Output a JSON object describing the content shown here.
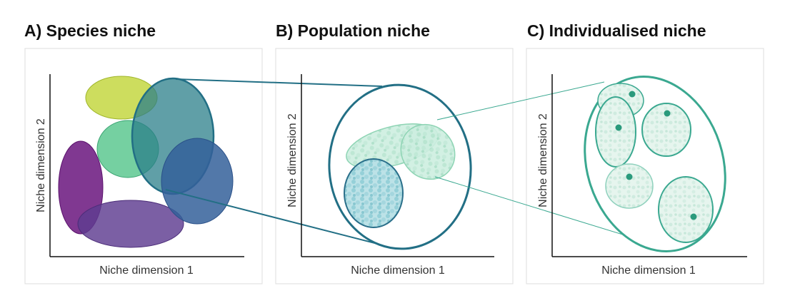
{
  "panels": [
    {
      "title": "A) Species niche",
      "x_label": "Niche dimension 1",
      "y_label": "Niche dimension 2"
    },
    {
      "title": "B) Population niche",
      "x_label": "Niche dimension 1",
      "y_label": "Niche dimension 2"
    },
    {
      "title": "C) Individualised niche",
      "x_label": "Niche dimension 1",
      "y_label": "Niche dimension 2"
    }
  ],
  "colors": {
    "species_yellow": "#c2d63a",
    "species_green": "#52c48a",
    "species_teal": "#2b7f8a",
    "species_blue": "#34609a",
    "species_purple_dark": "#6e1c82",
    "species_purple": "#5e3c90",
    "population_outline": "#226f85",
    "population_mint": "#a6ddc4",
    "population_teal": "#6cc0cc",
    "individual_outline": "#3aa890",
    "individual_fill": "#d8efe6",
    "dot": "#2a9a7c",
    "panel_border": "#dddddd",
    "axis": "#111111"
  }
}
